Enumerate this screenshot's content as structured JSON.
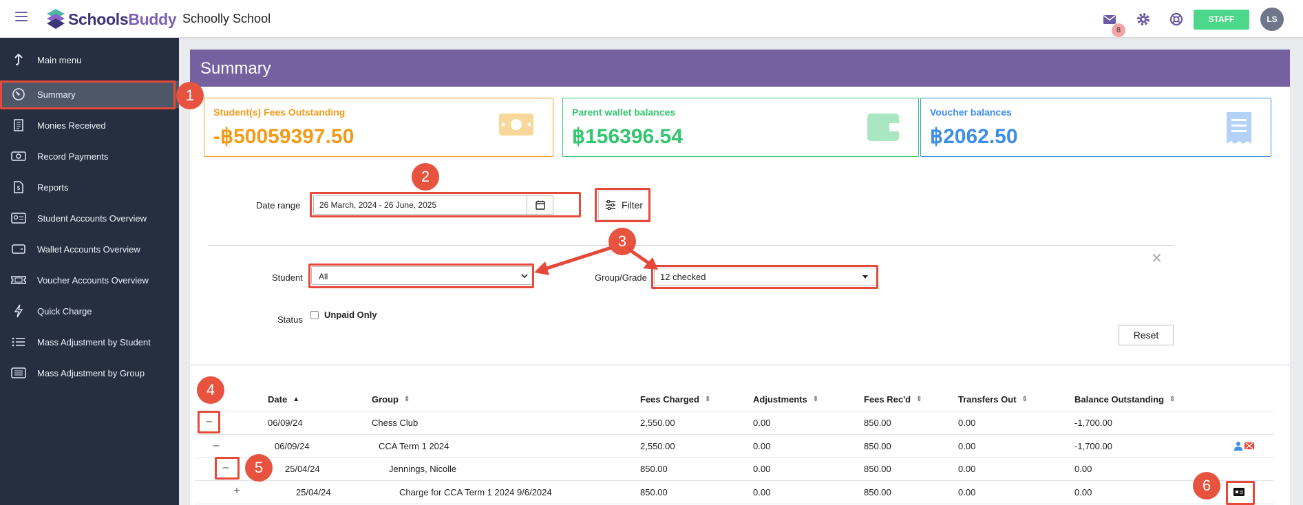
{
  "header": {
    "brand_a": "Schools",
    "brand_b": "Buddy",
    "school_name": "Schoolly School",
    "mail_count": "8",
    "staff_label": "STAFF",
    "avatar_initials": "LS"
  },
  "sidebar": {
    "items": [
      {
        "label": "Main menu",
        "icon": "arrow-up-icon"
      },
      {
        "label": "Summary",
        "icon": "dashboard-icon"
      },
      {
        "label": "Monies Received",
        "icon": "receipt-icon"
      },
      {
        "label": "Record Payments",
        "icon": "cash-icon"
      },
      {
        "label": "Reports",
        "icon": "report-icon"
      },
      {
        "label": "Student Accounts Overview",
        "icon": "id-card-icon"
      },
      {
        "label": "Wallet Accounts Overview",
        "icon": "wallet-icon"
      },
      {
        "label": "Voucher Accounts Overview",
        "icon": "ticket-icon"
      },
      {
        "label": "Quick Charge",
        "icon": "bolt-icon"
      },
      {
        "label": "Mass Adjustment by Student",
        "icon": "list-icon"
      },
      {
        "label": "Mass Adjustment by Group",
        "icon": "list-box-icon"
      }
    ]
  },
  "page": {
    "title": "Summary"
  },
  "cards": [
    {
      "label": "Student(s) Fees Outstanding",
      "value": "-฿50059397.50",
      "color": "#f29b18"
    },
    {
      "label": "Parent wallet balances",
      "value": "฿156396.54",
      "color": "#33c66f"
    },
    {
      "label": "Voucher balances",
      "value": "฿2062.50",
      "color": "#3f8de6"
    }
  ],
  "filters": {
    "date_label": "Date range",
    "date_value": "26 March, 2024 - 26 June, 2025",
    "filter_button": "Filter",
    "student_label": "Student",
    "student_value": "All",
    "group_label": "Group/Grade",
    "group_value": "12 checked",
    "status_label": "Status",
    "unpaid_label": "Unpaid Only",
    "reset_button": "Reset"
  },
  "table": {
    "columns": [
      "Date",
      "Group",
      "Fees Charged",
      "Adjustments",
      "Fees Rec'd",
      "Transfers Out",
      "Balance Outstanding"
    ],
    "rows": [
      {
        "toggle": "–",
        "date": "06/09/24",
        "group": "Chess Club",
        "fees": "2,550.00",
        "adj": "0.00",
        "rec": "850.00",
        "trans": "0.00",
        "bal": "-1,700.00"
      },
      {
        "toggle": "–",
        "date": "06/09/24",
        "group": "CCA Term 1 2024",
        "fees": "2,550.00",
        "adj": "0.00",
        "rec": "850.00",
        "trans": "0.00",
        "bal": "-1,700.00"
      },
      {
        "toggle": "–",
        "date": "25/04/24",
        "group": "Jennings, Nicolle",
        "fees": "850.00",
        "adj": "0.00",
        "rec": "850.00",
        "trans": "0.00",
        "bal": "0.00"
      },
      {
        "toggle": "+",
        "date": "25/04/24",
        "group": "Charge for CCA Term 1 2024 9/6/2024",
        "fees": "850.00",
        "adj": "0.00",
        "rec": "850.00",
        "trans": "0.00",
        "bal": "0.00"
      }
    ]
  },
  "annotations": [
    "1",
    "2",
    "3",
    "4",
    "5",
    "6"
  ],
  "colors": {
    "accent": "#7560a0",
    "sidebar": "#262f40",
    "staff": "#4cd88a",
    "annotation": "#e5493a"
  }
}
